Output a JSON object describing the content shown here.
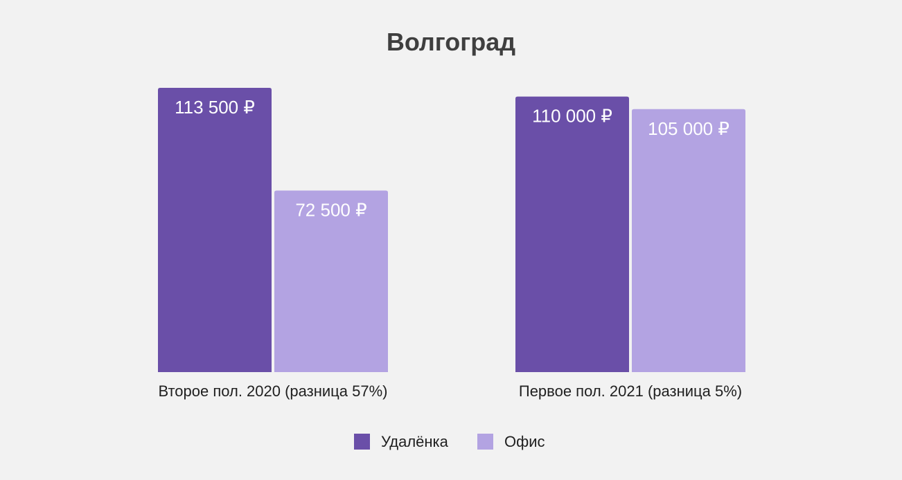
{
  "chart_data": {
    "type": "bar",
    "title": "Волгоград",
    "categories": [
      "Второе пол. 2020 (разница 57%)",
      "Первое пол. 2021 (разница 5%)"
    ],
    "series": [
      {
        "name": "Удалёнка",
        "color": "#6a4fa8",
        "values": [
          113500,
          110000
        ],
        "labels": [
          "113 500 ₽",
          "110 000 ₽"
        ]
      },
      {
        "name": "Офис",
        "color": "#b3a3e2",
        "values": [
          72500,
          105000
        ],
        "labels": [
          "72 500 ₽",
          "105 000 ₽"
        ]
      }
    ],
    "xlabel": "",
    "ylabel": "",
    "ylim": [
      0,
      113500
    ],
    "grid": false,
    "legend_position": "bottom"
  }
}
